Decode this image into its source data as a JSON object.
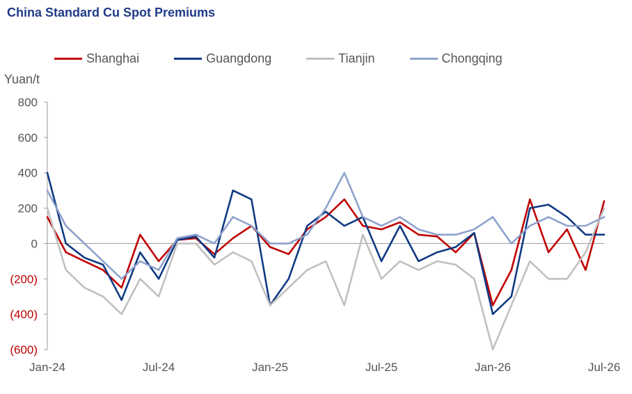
{
  "chart_data": {
    "type": "line",
    "title": "China Standard Cu Spot Premiums",
    "ylabel": "Yuan/t",
    "ylim": [
      -600,
      800
    ],
    "y_ticks": [
      800,
      600,
      400,
      200,
      0,
      -200,
      -400,
      -600
    ],
    "y_tick_labels": [
      "800",
      "600",
      "400",
      "200",
      "0",
      "(200)",
      "(400)",
      "(600)"
    ],
    "x_tick_labels": [
      "Jan-24",
      "Jul-24",
      "Jan-25",
      "Jul-25",
      "Jan-26",
      "Jul-26"
    ],
    "x_ticks": [
      "2024-01",
      "2024-07",
      "2025-01",
      "2025-07",
      "2026-01",
      "2026-07"
    ],
    "xlim": [
      "2024-01",
      "2026-07"
    ],
    "legend_position": "top",
    "series": [
      {
        "name": "Shanghai",
        "color": "#c00000",
        "x": [
          "2024-01",
          "2024-02",
          "2024-03",
          "2024-04",
          "2024-05",
          "2024-06",
          "2024-07",
          "2024-08",
          "2024-09",
          "2024-10",
          "2024-11",
          "2024-12",
          "2025-01",
          "2025-02",
          "2025-03",
          "2025-04",
          "2025-05",
          "2025-06",
          "2025-07",
          "2025-08",
          "2025-09",
          "2025-10",
          "2025-11",
          "2025-12",
          "2026-01",
          "2026-02",
          "2026-03",
          "2026-04",
          "2026-05",
          "2026-06",
          "2026-07"
        ],
        "values": [
          150,
          -50,
          -100,
          -150,
          -250,
          50,
          -100,
          20,
          30,
          -60,
          30,
          100,
          -20,
          -60,
          80,
          150,
          250,
          100,
          80,
          120,
          50,
          40,
          -50,
          60,
          -350,
          -150,
          250,
          -50,
          80,
          -150,
          240
        ]
      },
      {
        "name": "Guangdong",
        "color": "#0f3a83",
        "x": [
          "2024-01",
          "2024-02",
          "2024-03",
          "2024-04",
          "2024-05",
          "2024-06",
          "2024-07",
          "2024-08",
          "2024-09",
          "2024-10",
          "2024-11",
          "2024-12",
          "2025-01",
          "2025-02",
          "2025-03",
          "2025-04",
          "2025-05",
          "2025-06",
          "2025-07",
          "2025-08",
          "2025-09",
          "2025-10",
          "2025-11",
          "2025-12",
          "2026-01",
          "2026-02",
          "2026-03",
          "2026-04",
          "2026-05",
          "2026-06",
          "2026-07"
        ],
        "values": [
          400,
          0,
          -80,
          -120,
          -320,
          -50,
          -200,
          20,
          40,
          -80,
          300,
          250,
          -350,
          -200,
          100,
          180,
          100,
          150,
          -100,
          100,
          -100,
          -50,
          -20,
          60,
          -400,
          -300,
          200,
          220,
          150,
          50,
          50
        ]
      },
      {
        "name": "Tianjin",
        "color": "#c0c0c0",
        "x": [
          "2024-01",
          "2024-02",
          "2024-03",
          "2024-04",
          "2024-05",
          "2024-06",
          "2024-07",
          "2024-08",
          "2024-09",
          "2024-10",
          "2024-11",
          "2024-12",
          "2025-01",
          "2025-02",
          "2025-03",
          "2025-04",
          "2025-05",
          "2025-06",
          "2025-07",
          "2025-08",
          "2025-09",
          "2025-10",
          "2025-11",
          "2025-12",
          "2026-01",
          "2026-02",
          "2026-03",
          "2026-04",
          "2026-05",
          "2026-06",
          "2026-07"
        ],
        "values": [
          200,
          -150,
          -250,
          -300,
          -400,
          -200,
          -300,
          0,
          0,
          -120,
          -50,
          -100,
          -350,
          -250,
          -150,
          -100,
          -350,
          50,
          -200,
          -100,
          -150,
          -100,
          -120,
          -200,
          -600,
          -350,
          -100,
          -200,
          -200,
          -50,
          200
        ]
      },
      {
        "name": "Chongqing",
        "color": "#8ea2cc",
        "x": [
          "2024-01",
          "2024-02",
          "2024-03",
          "2024-04",
          "2024-05",
          "2024-06",
          "2024-07",
          "2024-08",
          "2024-09",
          "2024-10",
          "2024-11",
          "2024-12",
          "2025-01",
          "2025-02",
          "2025-03",
          "2025-04",
          "2025-05",
          "2025-06",
          "2025-07",
          "2025-08",
          "2025-09",
          "2025-10",
          "2025-11",
          "2025-12",
          "2026-01",
          "2026-02",
          "2026-03",
          "2026-04",
          "2026-05",
          "2026-06",
          "2026-07"
        ],
        "values": [
          300,
          100,
          0,
          -100,
          -200,
          -100,
          -150,
          30,
          50,
          0,
          150,
          100,
          0,
          0,
          50,
          200,
          400,
          150,
          100,
          150,
          80,
          50,
          50,
          80,
          150,
          0,
          100,
          150,
          100,
          100,
          150
        ]
      }
    ]
  }
}
